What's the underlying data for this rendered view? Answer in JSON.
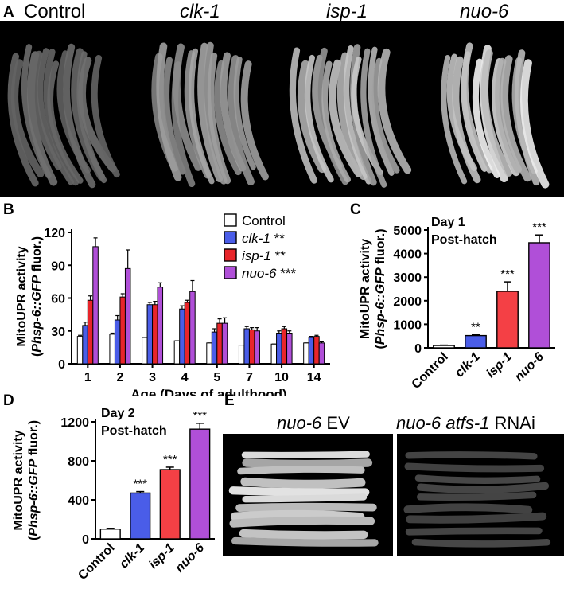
{
  "panelA": {
    "letter": "A",
    "labels": [
      "Control",
      "clk-1",
      "isp-1",
      "nuo-6"
    ],
    "intensity": [
      0.28,
      0.55,
      0.75,
      0.95
    ]
  },
  "chart_data": [
    {
      "panel": "B",
      "type": "bar",
      "ylabel_line1": "MitoUPR activity",
      "ylabel_line2": "(Phsp-6::GFP fluor.)",
      "xlabel": "Age (Days of adulthood)",
      "categories": [
        "1",
        "2",
        "3",
        "4",
        "5",
        "7",
        "10",
        "14"
      ],
      "ylim": [
        0,
        120
      ],
      "yticks": [
        0,
        30,
        60,
        90,
        120
      ],
      "legend_position": "top-right",
      "series": [
        {
          "name": "Control",
          "sig": "",
          "color": "#ffffff",
          "values": [
            25,
            27,
            24,
            21,
            19,
            17,
            18,
            19
          ],
          "errors": [
            1,
            1,
            0,
            0,
            0,
            0,
            0,
            0
          ]
        },
        {
          "name": "clk-1",
          "sig": "**",
          "color": "#4a5de8",
          "values": [
            35,
            40,
            54,
            50,
            29,
            32,
            28,
            24
          ],
          "errors": [
            3,
            4,
            2,
            3,
            3,
            2,
            2,
            1
          ]
        },
        {
          "name": "isp-1",
          "sig": "**",
          "color": "#e8252a",
          "values": [
            58,
            61,
            54,
            56,
            37,
            31,
            32,
            25
          ],
          "errors": [
            4,
            3,
            3,
            2,
            4,
            2,
            2,
            1
          ]
        },
        {
          "name": "nuo-6",
          "sig": "***",
          "color": "#b04fd8",
          "values": [
            107,
            87,
            70,
            66,
            37,
            30,
            28,
            19
          ],
          "errors": [
            8,
            17,
            4,
            10,
            5,
            3,
            2,
            1
          ]
        }
      ]
    },
    {
      "panel": "C",
      "type": "bar",
      "annotation_line1": "Day 1",
      "annotation_line2": "Post-hatch",
      "ylabel_line1": "MitoUPR activity",
      "ylabel_line2": "(Phsp-6::GFP fluor.)",
      "categories": [
        "Control",
        "clk-1",
        "isp-1",
        "nuo-6"
      ],
      "values": [
        100,
        520,
        2400,
        4460
      ],
      "errors": [
        15,
        40,
        400,
        330
      ],
      "sig": [
        "",
        "**",
        "***",
        "***"
      ],
      "colors": [
        "#ffffff",
        "#4a5de8",
        "#f44045",
        "#b04fd8"
      ],
      "ylim": [
        0,
        5000
      ],
      "yticks": [
        0,
        1000,
        2000,
        3000,
        4000,
        5000
      ]
    },
    {
      "panel": "D",
      "type": "bar",
      "annotation_line1": "Day 2",
      "annotation_line2": "Post-hatch",
      "ylabel_line1": "MitoUPR activity",
      "ylabel_line2": "(Phsp-6::GFP fluor.)",
      "categories": [
        "Control",
        "clk-1",
        "isp-1",
        "nuo-6"
      ],
      "values": [
        100,
        470,
        710,
        1125
      ],
      "errors": [
        8,
        15,
        25,
        60
      ],
      "sig": [
        "",
        "***",
        "***",
        "***"
      ],
      "colors": [
        "#ffffff",
        "#4a5de8",
        "#f44045",
        "#b04fd8"
      ],
      "ylim": [
        0,
        1200
      ],
      "yticks": [
        0,
        400,
        800,
        1200
      ]
    }
  ],
  "panelB": {
    "letter": "B"
  },
  "panelC": {
    "letter": "C"
  },
  "panelD": {
    "letter": "D"
  },
  "panelE": {
    "letter": "E",
    "label1_italic": "nuo-6",
    "label1_rest": " EV",
    "label2_italic": "nuo-6 atfs-1",
    "label2_rest": " RNAi",
    "intensity": [
      0.9,
      0.15
    ]
  }
}
